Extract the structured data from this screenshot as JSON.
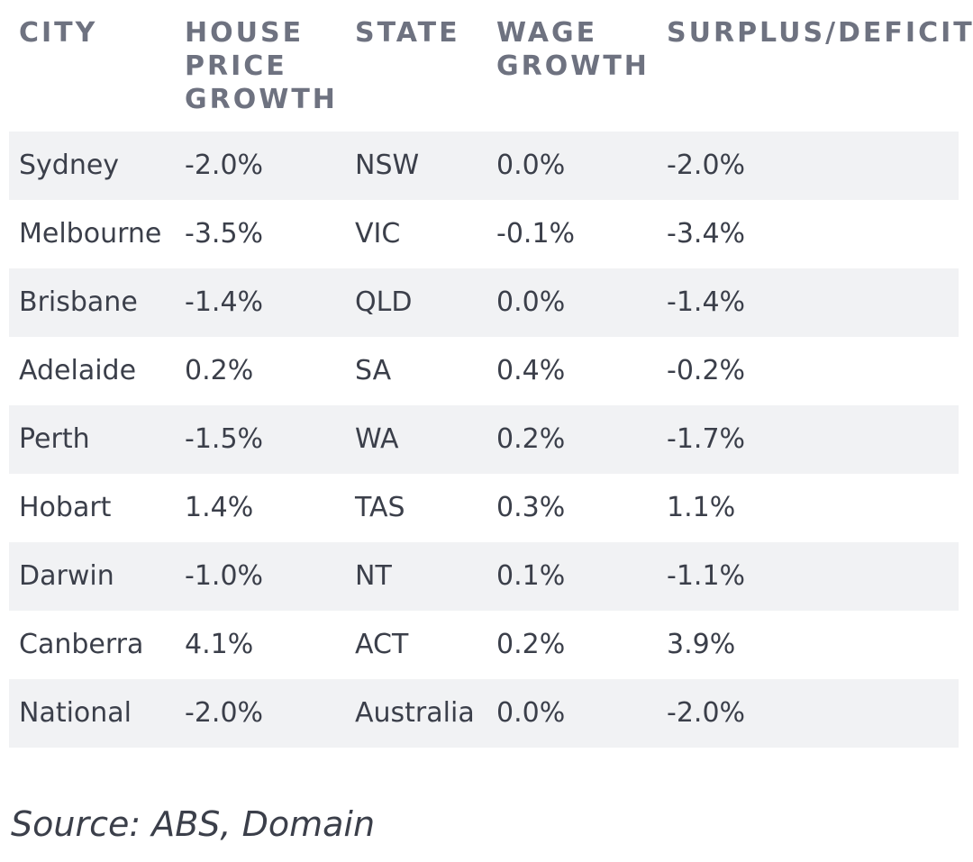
{
  "table": {
    "headers": [
      "CITY",
      "HOUSE PRICE GROWTH",
      "STATE",
      "WAGE GROWTH",
      "SURPLUS/DEFICIT"
    ],
    "rows": [
      [
        "Sydney",
        "-2.0%",
        "NSW",
        "0.0%",
        "-2.0%"
      ],
      [
        "Melbourne",
        "-3.5%",
        "VIC",
        "-0.1%",
        "-3.4%"
      ],
      [
        "Brisbane",
        "-1.4%",
        "QLD",
        "0.0%",
        "-1.4%"
      ],
      [
        "Adelaide",
        "0.2%",
        "SA",
        "0.4%",
        "-0.2%"
      ],
      [
        "Perth",
        "-1.5%",
        "WA",
        "0.2%",
        "-1.7%"
      ],
      [
        "Hobart",
        "1.4%",
        "TAS",
        "0.3%",
        "1.1%"
      ],
      [
        "Darwin",
        "-1.0%",
        "NT",
        "0.1%",
        "-1.1%"
      ],
      [
        "Canberra",
        "4.1%",
        "ACT",
        "0.2%",
        "3.9%"
      ],
      [
        "National",
        "-2.0%",
        "Australia",
        "0.0%",
        "-2.0%"
      ]
    ]
  },
  "source": "Source: ABS, Domain",
  "colors": {
    "header_text": "#6e7280",
    "body_text": "#3b3f4a",
    "row_shade": "#f1f2f4"
  }
}
